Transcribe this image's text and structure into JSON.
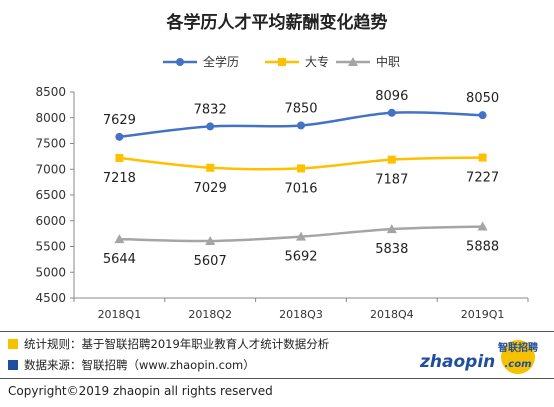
{
  "chart_data": {
    "type": "line",
    "title": "各学历人才平均薪酬变化趋势",
    "categories": [
      "2018Q1",
      "2018Q2",
      "2018Q3",
      "2018Q4",
      "2019Q1"
    ],
    "ylim": [
      4500,
      8500
    ],
    "yticks": [
      4500,
      5000,
      5500,
      6000,
      6500,
      7000,
      7500,
      8000,
      8500
    ],
    "grid": false,
    "legend_position": "top",
    "series": [
      {
        "name": "全学历",
        "values": [
          7629,
          7832,
          7850,
          8096,
          8050
        ],
        "color": "#4472C4",
        "marker": "circle"
      },
      {
        "name": "大专",
        "values": [
          7218,
          7029,
          7016,
          7187,
          7227
        ],
        "color": "#FFC000",
        "marker": "square"
      },
      {
        "name": "中职",
        "values": [
          5644,
          5607,
          5692,
          5838,
          5888
        ],
        "color": "#A5A5A5",
        "marker": "triangle"
      }
    ]
  },
  "footer": {
    "rule_text": "统计规则：基于智联招聘2019年职业教育人才统计数据分析",
    "rule_color": "#F5C100",
    "source_text": "数据来源：智联招聘（www.zhaopin.com）",
    "source_color": "#1F4E9E",
    "copyright": "Copyright©2019 zhaopin all rights reserved"
  },
  "logo": {
    "brand_cn": "智联招聘",
    "brand_en": "zhaopin.com",
    "icon": "zhaopin-logo"
  }
}
